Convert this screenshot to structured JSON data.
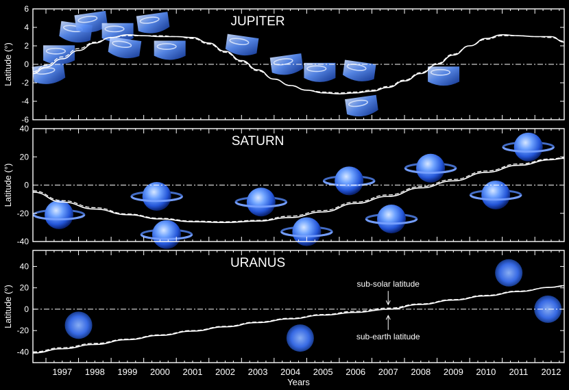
{
  "chart_data": [
    {
      "type": "line",
      "title": "JUPITER",
      "ylabel": "Latitude (°)",
      "ylim": [
        -6,
        6
      ],
      "yticks": [
        -6,
        -4,
        -2,
        0,
        2,
        4,
        6
      ],
      "xlim": [
        1996.6,
        2012.9
      ],
      "series": [
        {
          "x": [
            1996.6,
            1997.0,
            1997.5,
            1998.0,
            1998.5,
            1999.0,
            1999.5,
            2000.0,
            2000.5,
            2001.0,
            2001.5,
            2002.0,
            2002.5,
            2003.0,
            2003.5,
            2004.0,
            2004.5,
            2005.0,
            2005.5,
            2006.0,
            2006.5,
            2007.0,
            2007.5,
            2008.0,
            2008.5,
            2009.0,
            2009.5,
            2010.0,
            2010.5,
            2011.0,
            2011.5,
            2012.0,
            2012.5,
            2012.9
          ],
          "y": [
            -1.0,
            -0.3,
            0.6,
            1.5,
            2.3,
            2.9,
            3.2,
            3.1,
            3.0,
            3.0,
            2.9,
            2.3,
            1.4,
            0.4,
            -0.6,
            -1.6,
            -2.3,
            -2.8,
            -3.1,
            -3.2,
            -3.1,
            -2.9,
            -2.5,
            -1.8,
            -1.0,
            0.0,
            1.0,
            2.0,
            2.8,
            3.2,
            3.1,
            3.0,
            3.0,
            2.4
          ],
          "style": "solid"
        },
        {
          "x": [
            1996.6,
            1997.0,
            1997.5,
            1998.0,
            1998.5,
            1999.0,
            1999.5,
            2000.0,
            2000.5,
            2001.0,
            2001.5,
            2002.0,
            2002.5,
            2003.0,
            2003.5,
            2004.0,
            2004.5,
            2005.0,
            2005.5,
            2006.0,
            2006.5,
            2007.0,
            2007.5,
            2008.0,
            2008.5,
            2009.0,
            2009.5,
            2010.0,
            2010.5,
            2011.0,
            2011.5,
            2012.0,
            2012.5,
            2012.9
          ],
          "y": [
            -0.8,
            -0.1,
            0.8,
            1.7,
            2.4,
            2.9,
            3.1,
            3.1,
            3.1,
            3.0,
            2.8,
            2.2,
            1.3,
            0.3,
            -0.7,
            -1.6,
            -2.3,
            -2.8,
            -3.0,
            -3.1,
            -3.0,
            -2.8,
            -2.4,
            -1.7,
            -0.9,
            0.1,
            1.1,
            2.0,
            2.7,
            3.1,
            3.1,
            3.0,
            2.9,
            2.5
          ],
          "style": "dashed"
        }
      ]
    },
    {
      "type": "line",
      "title": "SATURN",
      "ylabel": "Latitude (°)",
      "ylim": [
        -40,
        40
      ],
      "yticks": [
        -40,
        -20,
        0,
        20,
        40
      ],
      "xlim": [
        1996.6,
        2012.9
      ],
      "series": [
        {
          "x": [
            1996.6,
            1997.5,
            1998.5,
            1999.5,
            2000.5,
            2001.5,
            2002.5,
            2003.5,
            2004.5,
            2005.5,
            2006.5,
            2007.5,
            2008.5,
            2009.5,
            2010.5,
            2011.5,
            2012.5,
            2012.9
          ],
          "y": [
            -5.0,
            -12.0,
            -17.0,
            -21.0,
            -24.0,
            -26.0,
            -26.5,
            -25.5,
            -23.0,
            -19.0,
            -13.0,
            -8.0,
            -2.0,
            3.0,
            9.0,
            14.0,
            18.0,
            19.0
          ],
          "style": "solid"
        },
        {
          "x": [
            1996.6,
            1997.5,
            1998.5,
            1999.5,
            2000.5,
            2001.5,
            2002.5,
            2003.5,
            2004.5,
            2005.5,
            2006.5,
            2007.5,
            2008.5,
            2009.5,
            2010.5,
            2011.5,
            2012.5,
            2012.9
          ],
          "y": [
            -4.0,
            -11.0,
            -16.0,
            -20.5,
            -23.5,
            -25.5,
            -26.0,
            -25.0,
            -22.0,
            -18.0,
            -12.0,
            -7.0,
            -1.0,
            4.0,
            10.0,
            15.0,
            18.5,
            19.5
          ],
          "style": "dashed"
        }
      ]
    },
    {
      "type": "line",
      "title": "URANUS",
      "ylabel": "Latitude (°)",
      "ylim": [
        -50,
        55
      ],
      "yticks": [
        -40,
        -20,
        0,
        20,
        40
      ],
      "xlabel": "Years",
      "xlim": [
        1996.6,
        2012.9
      ],
      "xticks": [
        1997,
        1998,
        1999,
        2000,
        2001,
        2002,
        2003,
        2004,
        2005,
        2006,
        2007,
        2008,
        2009,
        2010,
        2011,
        2012
      ],
      "series": [
        {
          "x": [
            1996.6,
            1997.5,
            1998.5,
            1999.5,
            2000.5,
            2001.5,
            2002.5,
            2003.5,
            2004.5,
            2005.5,
            2006.5,
            2007.5,
            2008.5,
            2009.5,
            2010.5,
            2011.5,
            2012.5,
            2012.9
          ],
          "y": [
            -41.0,
            -37.0,
            -33.0,
            -28.5,
            -24.5,
            -20.5,
            -16.5,
            -12.5,
            -9.0,
            -5.5,
            -3.0,
            0.0,
            4.5,
            8.5,
            12.5,
            16.5,
            20.5,
            22.0
          ],
          "style": "solid"
        },
        {
          "x": [
            1996.6,
            1997.5,
            1998.5,
            1999.5,
            2000.5,
            2001.5,
            2002.5,
            2003.5,
            2004.5,
            2005.5,
            2006.5,
            2007.5,
            2008.5,
            2009.5,
            2010.5,
            2011.5,
            2012.5,
            2012.9
          ],
          "y": [
            -40.0,
            -36.0,
            -32.0,
            -28.0,
            -24.0,
            -20.0,
            -16.0,
            -12.0,
            -8.5,
            -5.0,
            -2.0,
            1.0,
            5.0,
            9.0,
            13.0,
            17.0,
            20.5,
            21.5
          ],
          "style": "dashed"
        }
      ],
      "annotations": [
        {
          "text": "sub-solar latitude",
          "x": 2007.5,
          "y": 3.0,
          "position": "above"
        },
        {
          "text": "sub-earth latitude",
          "x": 2007.5,
          "y": -4.0,
          "position": "below"
        }
      ]
    }
  ],
  "images": {
    "jupiter": [
      {
        "x": 1997.1,
        "y": -1.3
      },
      {
        "x": 1997.4,
        "y": 0.8
      },
      {
        "x": 1997.9,
        "y": 3.2
      },
      {
        "x": 1998.4,
        "y": 4.3
      },
      {
        "x": 1999.2,
        "y": 3.2
      },
      {
        "x": 1999.4,
        "y": 1.5
      },
      {
        "x": 2000.3,
        "y": 4.2
      },
      {
        "x": 2000.8,
        "y": 1.3
      },
      {
        "x": 2003.0,
        "y": 1.8
      },
      {
        "x": 2004.4,
        "y": -0.3
      },
      {
        "x": 2005.4,
        "y": -1.1
      },
      {
        "x": 2006.6,
        "y": -1.0
      },
      {
        "x": 2006.7,
        "y": -4.8
      },
      {
        "x": 2009.2,
        "y": -1.5
      }
    ],
    "saturn": [
      {
        "x": 1997.4,
        "y": -21.0
      },
      {
        "x": 2000.4,
        "y": -8.0
      },
      {
        "x": 2000.7,
        "y": -35.0
      },
      {
        "x": 2003.6,
        "y": -12.0
      },
      {
        "x": 2005.0,
        "y": -33.0
      },
      {
        "x": 2006.3,
        "y": 3.0
      },
      {
        "x": 2007.6,
        "y": -24.0
      },
      {
        "x": 2008.8,
        "y": 12.0
      },
      {
        "x": 2010.8,
        "y": -7.0
      },
      {
        "x": 2011.8,
        "y": 27.0
      }
    ],
    "uranus": [
      {
        "x": 1998.0,
        "y": -15.0
      },
      {
        "x": 2004.8,
        "y": -27.0
      },
      {
        "x": 2011.2,
        "y": 34.0
      },
      {
        "x": 2012.4,
        "y": 0.0
      }
    ]
  },
  "colors": {
    "background": "#000000",
    "axes": "#ffffff",
    "planet_light": "#9fc2ff",
    "planet_mid": "#3b7dff",
    "planet_dark": "#0a2a8a"
  }
}
